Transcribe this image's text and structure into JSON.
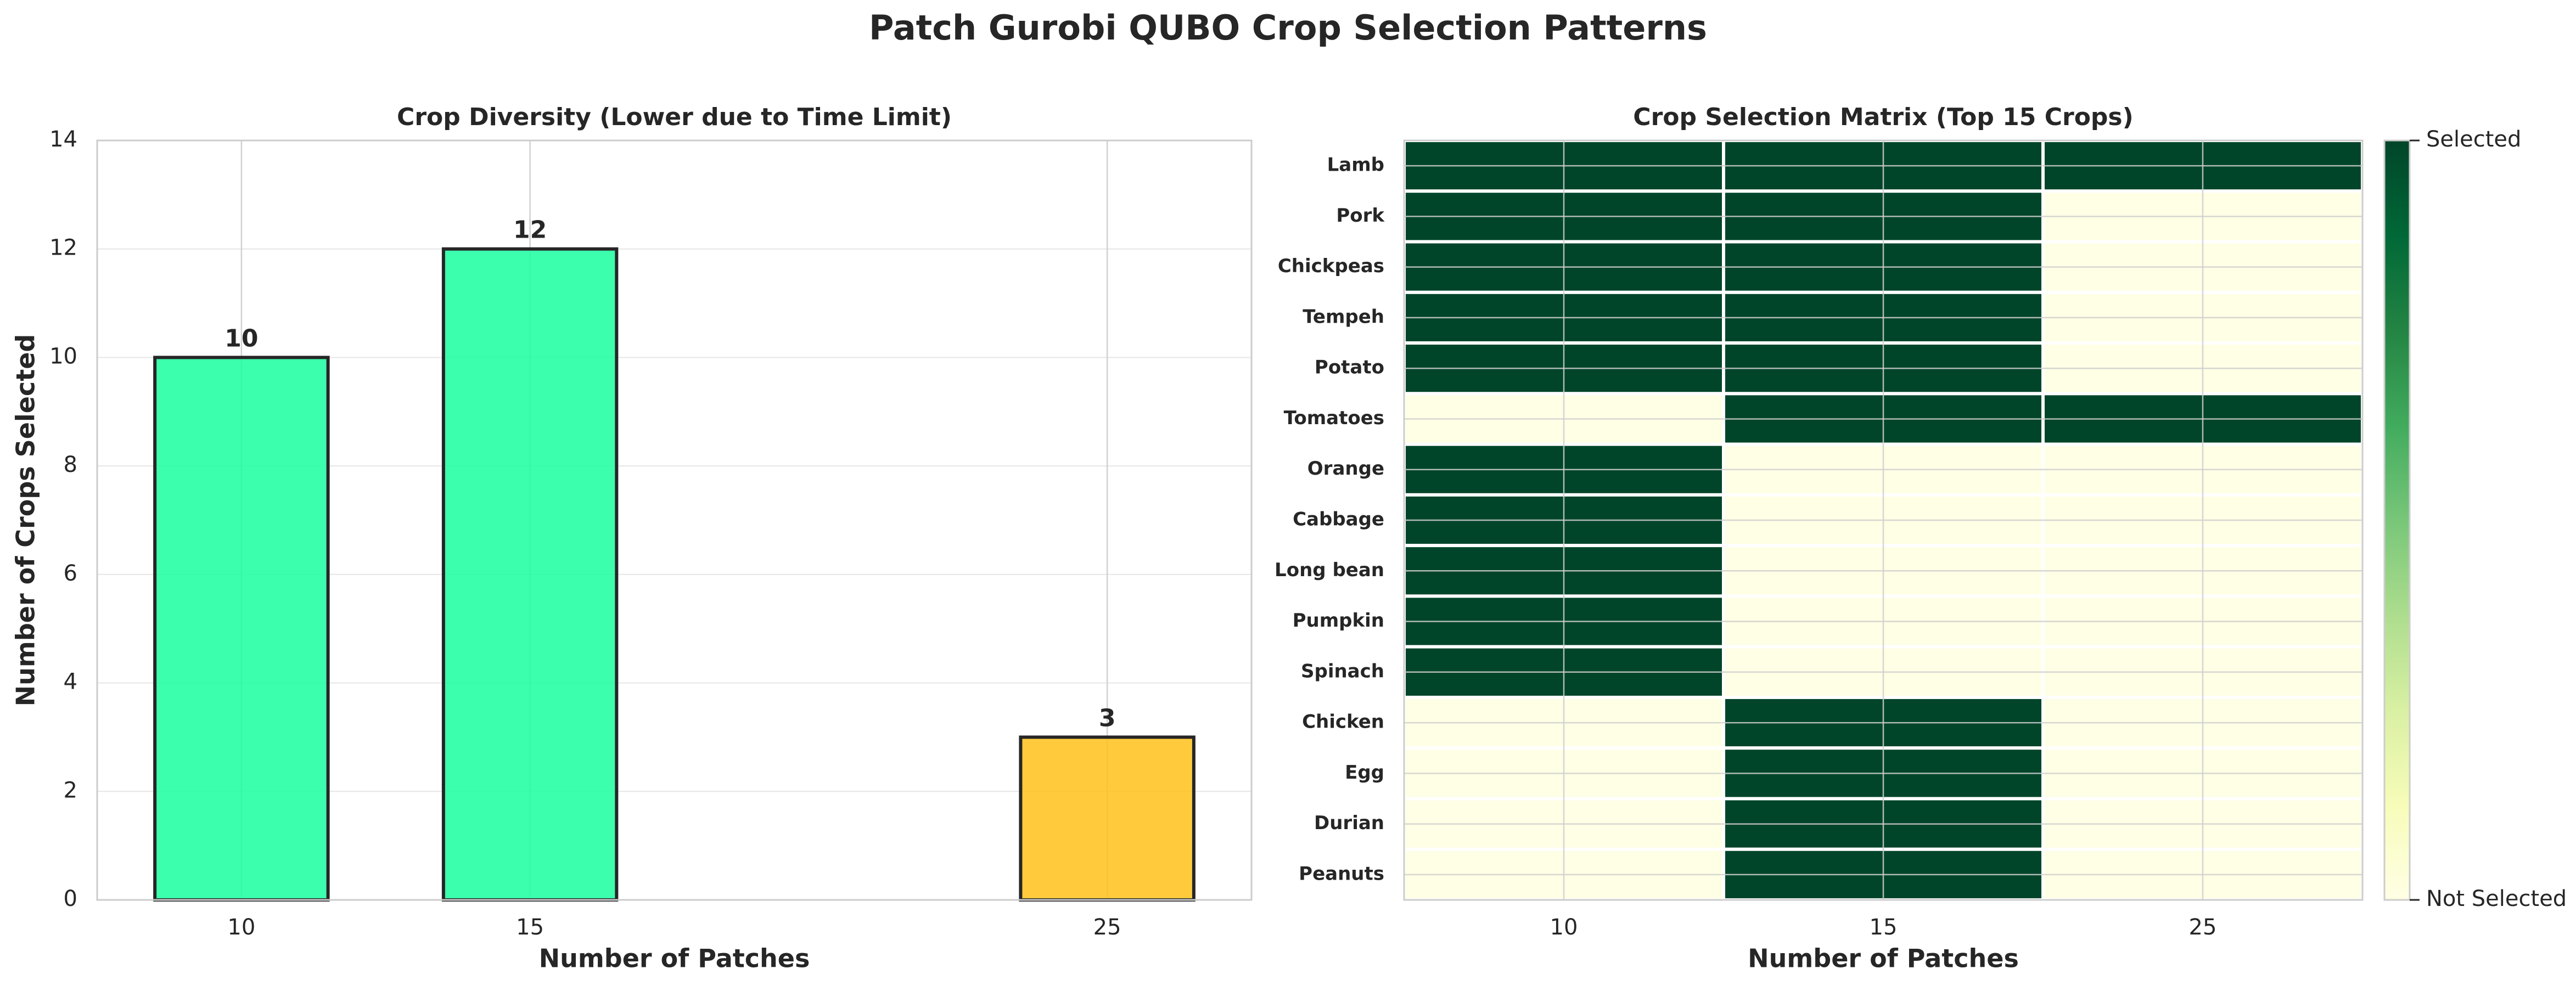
{
  "figure": {
    "suptitle": "Patch Gurobi QUBO Crop Selection Patterns"
  },
  "chart_data": [
    {
      "type": "bar",
      "title": "Crop Diversity (Lower due to Time Limit)",
      "xlabel": "Number of Patches",
      "ylabel": "Number of Crops Selected",
      "x": [
        10,
        15,
        25
      ],
      "values": [
        10,
        12,
        3
      ],
      "data_labels": [
        "10",
        "12",
        "3"
      ],
      "bar_colors": [
        "#1aff9f",
        "#1aff9f",
        "#ffc21a"
      ],
      "bar_edge_color": "#262626",
      "ylim": [
        0,
        14
      ],
      "xlim": [
        7.5,
        27.5
      ],
      "yticks": [
        0,
        2,
        4,
        6,
        8,
        10,
        12,
        14
      ],
      "xticks": [
        10,
        15,
        25
      ],
      "grid": true
    },
    {
      "type": "heatmap",
      "title": "Crop Selection Matrix (Top 15 Crops)",
      "xlabel": "Number of Patches",
      "columns": [
        "10",
        "15",
        "25"
      ],
      "rows": [
        "Lamb",
        "Pork",
        "Chickpeas",
        "Tempeh",
        "Potato",
        "Tomatoes",
        "Orange",
        "Cabbage",
        "Long bean",
        "Pumpkin",
        "Spinach",
        "Chicken",
        "Egg",
        "Durian",
        "Peanuts"
      ],
      "values": [
        [
          1,
          1,
          1
        ],
        [
          1,
          1,
          0
        ],
        [
          1,
          1,
          0
        ],
        [
          1,
          1,
          0
        ],
        [
          1,
          1,
          0
        ],
        [
          0,
          1,
          1
        ],
        [
          1,
          0,
          0
        ],
        [
          1,
          0,
          0
        ],
        [
          1,
          0,
          0
        ],
        [
          1,
          0,
          0
        ],
        [
          1,
          0,
          0
        ],
        [
          0,
          1,
          0
        ],
        [
          0,
          1,
          0
        ],
        [
          0,
          1,
          0
        ],
        [
          0,
          1,
          0
        ]
      ],
      "colormap": "YlGn",
      "color_selected": "#00452a",
      "color_not_selected": "#ffffe5",
      "colorbar_labels": [
        "Selected",
        "Not Selected"
      ],
      "grid": true
    }
  ]
}
